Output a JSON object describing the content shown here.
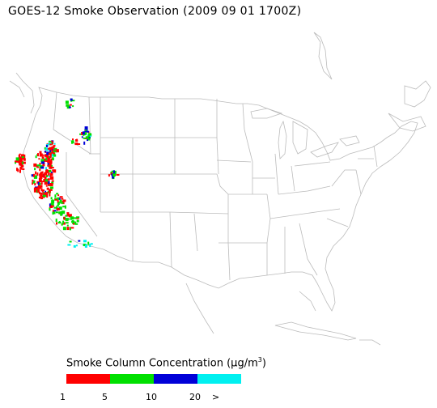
{
  "title": "GOES-12 Smoke Observation (2009 09 01  1700Z)",
  "legend": {
    "title_prefix": "Smoke Column Concentration (",
    "unit_mu": "μ",
    "unit_rest": "g/m",
    "unit_sup": "3",
    "title_suffix": ")",
    "bins": [
      {
        "label": "1",
        "color": "#ff0000"
      },
      {
        "label": "5",
        "color": "#00e000"
      },
      {
        "label": "10",
        "color": "#0000d8"
      },
      {
        "label": "20",
        "color": "#00f0f0"
      }
    ],
    "overflow_label": ">"
  },
  "map_layers": [
    "us-state-boundaries-icon",
    "coastline-icon",
    "great-lakes-icon",
    "smoke-pixels"
  ]
}
